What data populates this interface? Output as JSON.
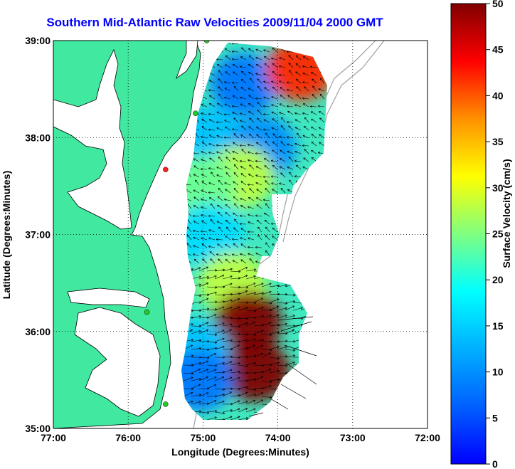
{
  "title": "Southern Mid-Atlantic Raw Velocities 2009/11/04 2000 GMT",
  "map": {
    "xlabel": "Longitude (Degrees:Minutes)",
    "ylabel": "Latitude (Degrees:Minutes)",
    "lon_range": [
      -77,
      -72
    ],
    "lat_range": [
      35,
      39
    ],
    "lon_ticks": [
      "77:00",
      "76:00",
      "75:00",
      "74:00",
      "73:00",
      "72:00"
    ],
    "lat_ticks": [
      "35:00",
      "36:00",
      "37:00",
      "38:00",
      "39:00"
    ],
    "grid": "dotted",
    "land_color": "#40e8a0",
    "coast_color": "#000000",
    "shelf_contour_color": "#a0a0a0",
    "station_colors": {
      "active": "#22cc22",
      "inactive": "#ff2222"
    }
  },
  "colorbar": {
    "label": "Surface Velocity (cm/s)",
    "range": [
      0,
      50
    ],
    "ticks": [
      "0",
      "5",
      "10",
      "15",
      "20",
      "25",
      "30",
      "35",
      "40",
      "45",
      "50"
    ],
    "colormap": "jet"
  },
  "chart_data": {
    "type": "heatmap",
    "title": "Southern Mid-Atlantic Raw Velocities 2009/11/04 2000 GMT",
    "xlabel": "Longitude (Degrees:Minutes)",
    "ylabel": "Latitude (Degrees:Minutes)",
    "xlim": [
      -77,
      -72
    ],
    "ylim": [
      35,
      39
    ],
    "colorbar_label": "Surface Velocity (cm/s)",
    "clim": [
      0,
      50
    ],
    "regions": [
      {
        "lon": -74.45,
        "lat": 38.55,
        "speed": 8
      },
      {
        "lon": -73.7,
        "lat": 38.7,
        "speed": 42
      },
      {
        "lon": -74.9,
        "lat": 38.0,
        "speed": 14
      },
      {
        "lon": -74.2,
        "lat": 37.9,
        "speed": 10
      },
      {
        "lon": -74.5,
        "lat": 37.6,
        "speed": 28
      },
      {
        "lon": -75.0,
        "lat": 37.5,
        "speed": 24
      },
      {
        "lon": -74.9,
        "lat": 37.0,
        "speed": 16
      },
      {
        "lon": -74.6,
        "lat": 36.5,
        "speed": 28
      },
      {
        "lon": -74.4,
        "lat": 36.1,
        "speed": 50
      },
      {
        "lon": -74.3,
        "lat": 35.6,
        "speed": 50
      },
      {
        "lon": -75.1,
        "lat": 35.8,
        "speed": 14
      },
      {
        "lon": -75.05,
        "lat": 35.5,
        "speed": 8
      }
    ],
    "stations": [
      {
        "lon": -74.95,
        "lat": 39.0,
        "status": "active"
      },
      {
        "lon": -75.1,
        "lat": 38.25,
        "status": "active"
      },
      {
        "lon": -75.5,
        "lat": 37.67,
        "status": "inactive"
      },
      {
        "lon": -75.75,
        "lat": 36.2,
        "status": "active"
      },
      {
        "lon": -75.5,
        "lat": 35.25,
        "status": "active"
      }
    ]
  }
}
